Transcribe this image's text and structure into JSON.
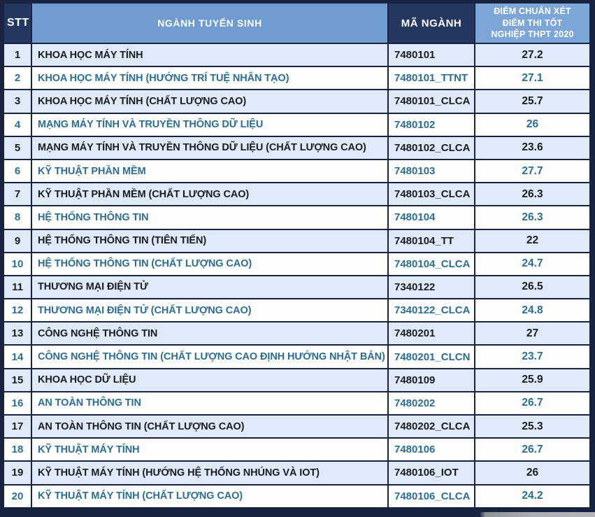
{
  "chart_data": {
    "type": "table",
    "title": "",
    "columns": [
      "STT",
      "NGÀNH TUYỂN SINH",
      "MÃ NGÀNH",
      "ĐIỂM CHUẨN XÉT ĐIỂM THI TỐT NGHIỆP THPT 2020"
    ],
    "rows": [
      [
        1,
        "KHOA HỌC MÁY TÍNH",
        "7480101",
        27.2
      ],
      [
        2,
        "KHOA HỌC MÁY TÍNH (HƯỚNG TRÍ TUỆ NHÂN TẠO)",
        "7480101_TTNT",
        27.1
      ],
      [
        3,
        "KHOA HỌC MÁY TÍNH (CHẤT LƯỢNG CAO)",
        "7480101_CLCA",
        25.7
      ],
      [
        4,
        "MẠNG MÁY TÍNH VÀ TRUYỀN THÔNG DỮ LIỆU",
        "7480102",
        26
      ],
      [
        5,
        "MẠNG MÁY TÍNH VÀ TRUYỀN THÔNG DỮ LIỆU (CHẤT LƯỢNG CAO)",
        "7480102_CLCA",
        23.6
      ],
      [
        6,
        "KỸ THUẬT PHẦN MỀM",
        "7480103",
        27.7
      ],
      [
        7,
        "KỸ THUẬT PHẦN MỀM (CHẤT LƯỢNG CAO)",
        "7480103_CLCA",
        26.3
      ],
      [
        8,
        "HỆ THỐNG THÔNG TIN",
        "7480104",
        26.3
      ],
      [
        9,
        "HỆ THỐNG THÔNG TIN (TIÊN TIẾN)",
        "7480104_TT",
        22
      ],
      [
        10,
        "HỆ THỐNG THÔNG TIN (CHẤT LƯỢNG CAO)",
        "7480104_CLCA",
        24.7
      ],
      [
        11,
        "THƯƠNG MẠI ĐIỆN TỬ",
        "7340122",
        26.5
      ],
      [
        12,
        "THƯƠNG MẠI ĐIỆN TỬ (CHẤT LƯỢNG CAO)",
        "7340122_CLCA",
        24.8
      ],
      [
        13,
        "CÔNG NGHỆ THÔNG TIN",
        "7480201",
        27
      ],
      [
        14,
        "CÔNG NGHỆ THÔNG TIN (CHẤT LƯỢNG CAO ĐỊNH HƯỚNG NHẬT BẢN)",
        "7480201_CLCN",
        23.7
      ],
      [
        15,
        "KHOA HỌC DỮ LIỆU",
        "7480109",
        25.9
      ],
      [
        16,
        "AN TOÀN THÔNG TIN",
        "7480202",
        26.7
      ],
      [
        17,
        "AN TOÀN THÔNG TIN (CHẤT LƯỢNG CAO)",
        "7480202_CLCA",
        25.3
      ],
      [
        18,
        "KỸ THUẬT MÁY TÍNH",
        "7480106",
        26.7
      ],
      [
        19,
        "KỸ THUẬT MÁY TÍNH (HƯỚNG HỆ THỐNG NHÚNG VÀ IOT)",
        "7480106_IOT",
        26
      ],
      [
        20,
        "KỸ THUẬT MÁY TÍNH (CHẤT LƯỢNG CAO)",
        "7480106_CLCA",
        24.2
      ]
    ],
    "layout_hints": {
      "grid": true,
      "alternating_rows": "odd rows light-blue with dark text, even rows white with teal text",
      "header_style": "STT and MÃ NGÀNH dark navy; NGÀNH TUYỂN SINH and ĐIỂM column medium blue; white bold text"
    }
  },
  "colors": {
    "grid": "#18233f",
    "header_dark": "#233760",
    "header_blue": "#6f9bd1",
    "header_blue_light": "#7ca5d8",
    "row_light": "#deeaf7",
    "row_white": "#fdfdfe",
    "text_dark": "#191d22",
    "text_teal": "#2d6d92"
  }
}
